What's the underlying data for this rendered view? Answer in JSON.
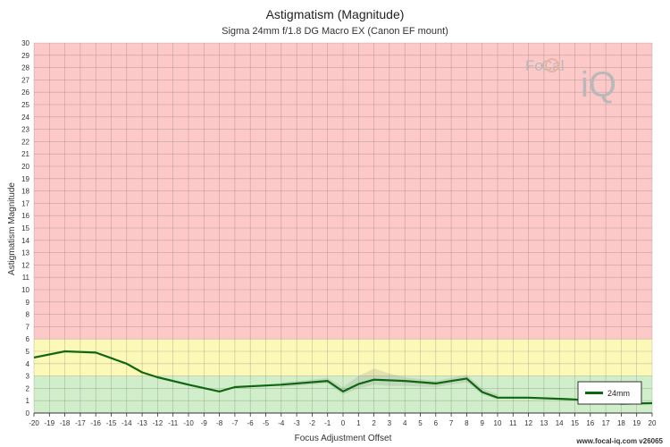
{
  "chart_data": {
    "type": "line",
    "title": "Astigmatism (Magnitude)",
    "subtitle": "Sigma 24mm f/1.8 DG Macro EX (Canon EF mount)",
    "xlabel": "Focus Adjustment Offset",
    "ylabel": "Astigmatism Magnitude",
    "xlim": [
      -20,
      20
    ],
    "ylim": [
      0,
      30
    ],
    "x_ticks": [
      -20,
      -19,
      -18,
      -17,
      -16,
      -15,
      -14,
      -13,
      -12,
      -11,
      -10,
      -9,
      -8,
      -7,
      -6,
      -5,
      -4,
      -3,
      -2,
      -1,
      0,
      1,
      2,
      3,
      4,
      5,
      6,
      7,
      8,
      9,
      10,
      11,
      12,
      13,
      14,
      15,
      16,
      17,
      18,
      19,
      20
    ],
    "y_ticks": [
      0,
      1,
      2,
      3,
      4,
      5,
      6,
      7,
      8,
      9,
      10,
      11,
      12,
      13,
      14,
      15,
      16,
      17,
      18,
      19,
      20,
      21,
      22,
      23,
      24,
      25,
      26,
      27,
      28,
      29,
      30
    ],
    "grid": true,
    "zones": [
      {
        "from": 0,
        "to": 3,
        "color": "#cfeec9"
      },
      {
        "from": 3,
        "to": 6,
        "color": "#fbf8b8"
      },
      {
        "from": 6,
        "to": 30,
        "color": "#fdc8c8"
      }
    ],
    "series": [
      {
        "name": "24mm",
        "color": "#116611",
        "x": [
          -20,
          -18,
          -16,
          -14,
          -13,
          -12,
          -10,
          -8,
          -7,
          -4,
          -1,
          0,
          1,
          2,
          4,
          6,
          8,
          9,
          10,
          12,
          15,
          18,
          20
        ],
        "y": [
          4.5,
          5.0,
          4.9,
          4.0,
          3.3,
          2.9,
          2.3,
          1.75,
          2.1,
          2.3,
          2.6,
          1.75,
          2.35,
          2.7,
          2.6,
          2.4,
          2.8,
          1.7,
          1.25,
          1.25,
          1.1,
          0.75,
          0.8
        ]
      }
    ],
    "band": {
      "x": [
        -4,
        -2,
        -1,
        0,
        1,
        2,
        3,
        4,
        6,
        8,
        9,
        10
      ],
      "upper": [
        2.5,
        2.7,
        2.85,
        2.1,
        3.0,
        3.6,
        3.2,
        2.9,
        2.6,
        3.1,
        2.0,
        1.5
      ],
      "lower": [
        2.1,
        2.3,
        2.4,
        1.5,
        2.0,
        2.3,
        2.2,
        2.2,
        2.1,
        2.5,
        1.5,
        1.1
      ]
    },
    "legend": {
      "position": "bottom-right",
      "entries": [
        "24mm"
      ]
    }
  },
  "logo": {
    "text_1": "Fo",
    "text_2": "Cal",
    "text_3": "iQ"
  },
  "credit": "www.focal-iq.com  v26065"
}
